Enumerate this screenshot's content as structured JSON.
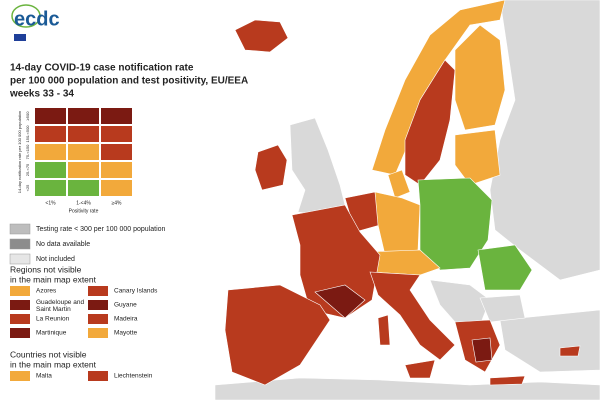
{
  "logo": {
    "text": "ecdc"
  },
  "title_lines": [
    "14-day COVID-19 case notification rate",
    "per 100 000 population and test positivity, EU/EEA",
    "weeks 33 - 34"
  ],
  "matrix": {
    "y_label": "14-day notification rate per 100 000 population",
    "x_label": "Positivity rate",
    "columns": [
      "<1%",
      "1-<4%",
      "≥4%"
    ],
    "rows": [
      {
        "label": "≥500",
        "colors": [
          "#7b1a12",
          "#7b1a12",
          "#7b1a12"
        ]
      },
      {
        "label": "150-<500",
        "colors": [
          "#b83a1e",
          "#b83a1e",
          "#b83a1e"
        ]
      },
      {
        "label": "75-<150",
        "colors": [
          "#f2a93b",
          "#f2a93b",
          "#b83a1e"
        ]
      },
      {
        "label": "25-<75",
        "colors": [
          "#6ab43e",
          "#f2a93b",
          "#f2a93b"
        ]
      },
      {
        "label": "<25",
        "colors": [
          "#6ab43e",
          "#6ab43e",
          "#f2a93b"
        ]
      }
    ]
  },
  "status_legend": [
    {
      "label": "Testing rate < 300 per 100 000 population",
      "color": "#bdbdbd"
    },
    {
      "label": "No data available",
      "color": "#8c8c8c"
    },
    {
      "label": "Not included",
      "color": "#e6e6e6"
    }
  ],
  "regions": {
    "heading": [
      "Regions not visible",
      "in the main map extent"
    ],
    "items": [
      {
        "label": "Azores",
        "color": "#f2a93b"
      },
      {
        "label": "Canary Islands",
        "color": "#b83a1e"
      },
      {
        "label": "Guadeloupe and Saint Martin",
        "color": "#7b1a12"
      },
      {
        "label": "Guyane",
        "color": "#7b1a12"
      },
      {
        "label": "La Reunion",
        "color": "#b83a1e"
      },
      {
        "label": "Madeira",
        "color": "#b83a1e"
      },
      {
        "label": "Martinique",
        "color": "#7b1a12"
      },
      {
        "label": "Mayotte",
        "color": "#f2a93b"
      }
    ]
  },
  "countries": {
    "heading": [
      "Countries not visible",
      "in the main map extent"
    ],
    "items": [
      {
        "label": "Malta",
        "color": "#f2a93b"
      },
      {
        "label": "Liechtenstein",
        "color": "#b83a1e"
      }
    ]
  }
}
